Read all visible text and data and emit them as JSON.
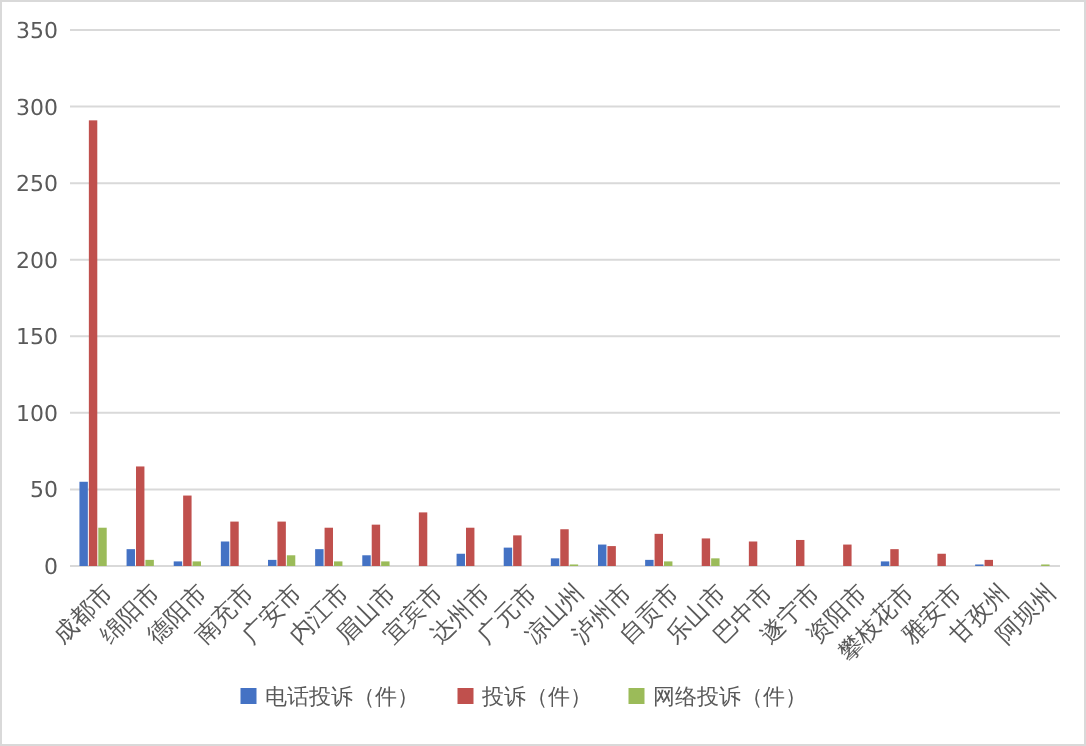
{
  "chart_data": {
    "type": "bar",
    "categories": [
      "成都市",
      "绵阳市",
      "德阳市",
      "南充市",
      "广安市",
      "内江市",
      "眉山市",
      "宜宾市",
      "达州市",
      "广元市",
      "凉山州",
      "泸州市",
      "自贡市",
      "乐山市",
      "巴中市",
      "遂宁市",
      "资阳市",
      "攀枝花市",
      "雅安市",
      "甘孜州",
      "阿坝州"
    ],
    "series": [
      {
        "name": "电话投诉（件）",
        "color": "#4472c4",
        "values": [
          55,
          11,
          3,
          16,
          4,
          11,
          7,
          0,
          8,
          12,
          5,
          14,
          4,
          0,
          0,
          0,
          0,
          3,
          0,
          1,
          0
        ]
      },
      {
        "name": "投诉（件）",
        "color": "#c0504d",
        "values": [
          291,
          65,
          46,
          29,
          29,
          25,
          27,
          35,
          25,
          20,
          24,
          13,
          21,
          18,
          16,
          17,
          14,
          11,
          8,
          4,
          0
        ]
      },
      {
        "name": "网络投诉（件）",
        "color": "#9bbb59",
        "values": [
          25,
          4,
          3,
          0,
          7,
          3,
          3,
          0,
          0,
          0,
          1,
          0,
          3,
          5,
          0,
          0,
          0,
          0,
          0,
          0,
          1
        ]
      }
    ],
    "ylim": [
      0,
      350
    ],
    "yticks": [
      0,
      50,
      100,
      150,
      200,
      250,
      300,
      350
    ],
    "grid": "y",
    "legend": "bottom"
  }
}
